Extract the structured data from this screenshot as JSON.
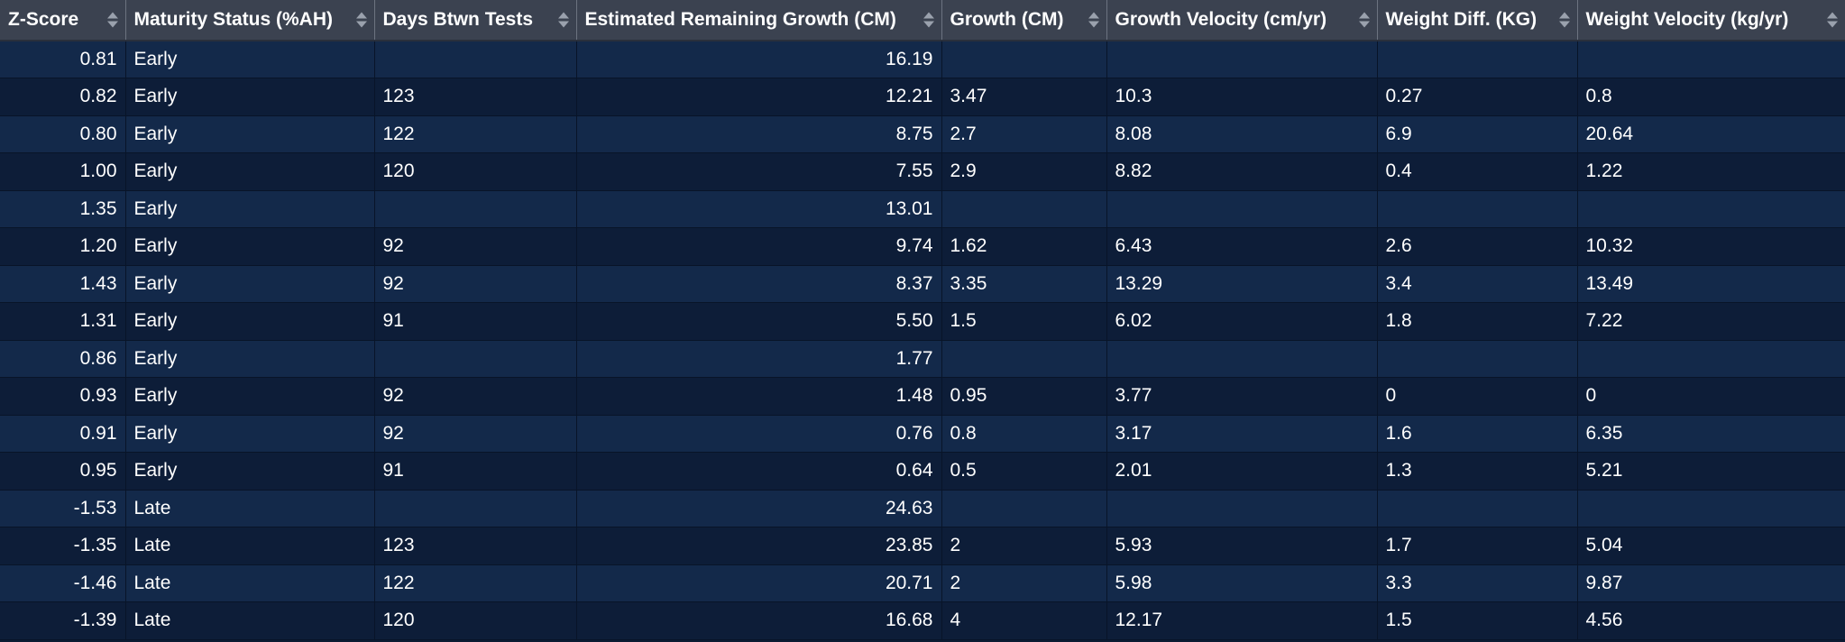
{
  "table": {
    "columns": [
      {
        "label": "Z-Score",
        "align": "right"
      },
      {
        "label": "Maturity Status (%AH)",
        "align": "left"
      },
      {
        "label": "Days Btwn Tests",
        "align": "left"
      },
      {
        "label": "Estimated Remaining Growth (CM)",
        "align": "right"
      },
      {
        "label": "Growth (CM)",
        "align": "left"
      },
      {
        "label": "Growth Velocity (cm/yr)",
        "align": "left"
      },
      {
        "label": "Weight Diff. (KG)",
        "align": "left"
      },
      {
        "label": "Weight Velocity (kg/yr)",
        "align": "left"
      }
    ],
    "rows": [
      [
        "0.81",
        "Early",
        "",
        "16.19",
        "",
        "",
        "",
        ""
      ],
      [
        "0.82",
        "Early",
        "123",
        "12.21",
        "3.47",
        "10.3",
        "0.27",
        "0.8"
      ],
      [
        "0.80",
        "Early",
        "122",
        "8.75",
        "2.7",
        "8.08",
        "6.9",
        "20.64"
      ],
      [
        "1.00",
        "Early",
        "120",
        "7.55",
        "2.9",
        "8.82",
        "0.4",
        "1.22"
      ],
      [
        "1.35",
        "Early",
        "",
        "13.01",
        "",
        "",
        "",
        ""
      ],
      [
        "1.20",
        "Early",
        "92",
        "9.74",
        "1.62",
        "6.43",
        "2.6",
        "10.32"
      ],
      [
        "1.43",
        "Early",
        "92",
        "8.37",
        "3.35",
        "13.29",
        "3.4",
        "13.49"
      ],
      [
        "1.31",
        "Early",
        "91",
        "5.50",
        "1.5",
        "6.02",
        "1.8",
        "7.22"
      ],
      [
        "0.86",
        "Early",
        "",
        "1.77",
        "",
        "",
        "",
        ""
      ],
      [
        "0.93",
        "Early",
        "92",
        "1.48",
        "0.95",
        "3.77",
        "0",
        "0"
      ],
      [
        "0.91",
        "Early",
        "92",
        "0.76",
        "0.8",
        "3.17",
        "1.6",
        "6.35"
      ],
      [
        "0.95",
        "Early",
        "91",
        "0.64",
        "0.5",
        "2.01",
        "1.3",
        "5.21"
      ],
      [
        "-1.53",
        "Late",
        "",
        "24.63",
        "",
        "",
        "",
        ""
      ],
      [
        "-1.35",
        "Late",
        "123",
        "23.85",
        "2",
        "5.93",
        "1.7",
        "5.04"
      ],
      [
        "-1.46",
        "Late",
        "122",
        "20.71",
        "2",
        "5.98",
        "3.3",
        "9.87"
      ],
      [
        "-1.39",
        "Late",
        "120",
        "16.68",
        "4",
        "12.17",
        "1.5",
        "4.56"
      ]
    ]
  },
  "colors": {
    "header_bg": "#3b4250",
    "row_odd": "#13294a",
    "row_even": "#0d1d38",
    "text": "#ffffff"
  }
}
